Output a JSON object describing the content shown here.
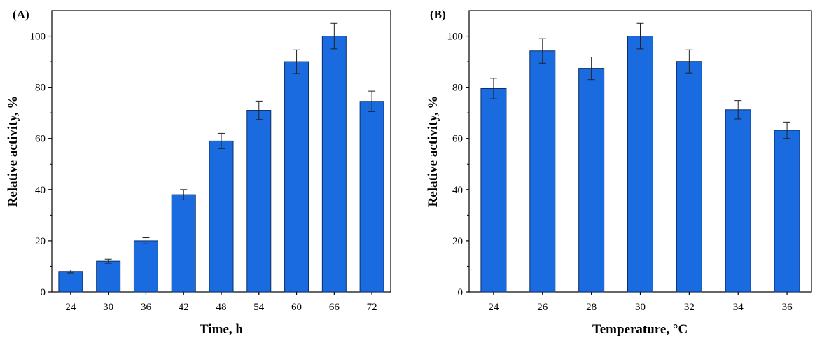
{
  "chart_data": [
    {
      "type": "bar",
      "panel_label": "(A)",
      "categories": [
        "24",
        "30",
        "36",
        "42",
        "48",
        "54",
        "60",
        "66",
        "72"
      ],
      "values": [
        8,
        12,
        20,
        38,
        59,
        71,
        90,
        100,
        74.5
      ],
      "errors": [
        0.6,
        0.8,
        1.2,
        2.0,
        3.0,
        3.6,
        4.6,
        5.0,
        4.0
      ],
      "xlabel": "Time, h",
      "ylabel": "Relative activity, %",
      "ylim": [
        0,
        110
      ],
      "yticks": [
        "0",
        "20",
        "40",
        "60",
        "80",
        "100"
      ],
      "bar_color": "#1a6ae0"
    },
    {
      "type": "bar",
      "panel_label": "(B)",
      "categories": [
        "24",
        "26",
        "28",
        "30",
        "32",
        "34",
        "36"
      ],
      "values": [
        79.5,
        94.2,
        87.4,
        100,
        90.1,
        71.2,
        63.2
      ],
      "errors": [
        4.0,
        4.8,
        4.4,
        5.0,
        4.5,
        3.6,
        3.2
      ],
      "xlabel": "Temperature, °C",
      "ylabel": "Relative activity, %",
      "ylim": [
        0,
        110
      ],
      "yticks": [
        "0",
        "20",
        "40",
        "60",
        "80",
        "100"
      ],
      "bar_color": "#1a6ae0"
    }
  ]
}
